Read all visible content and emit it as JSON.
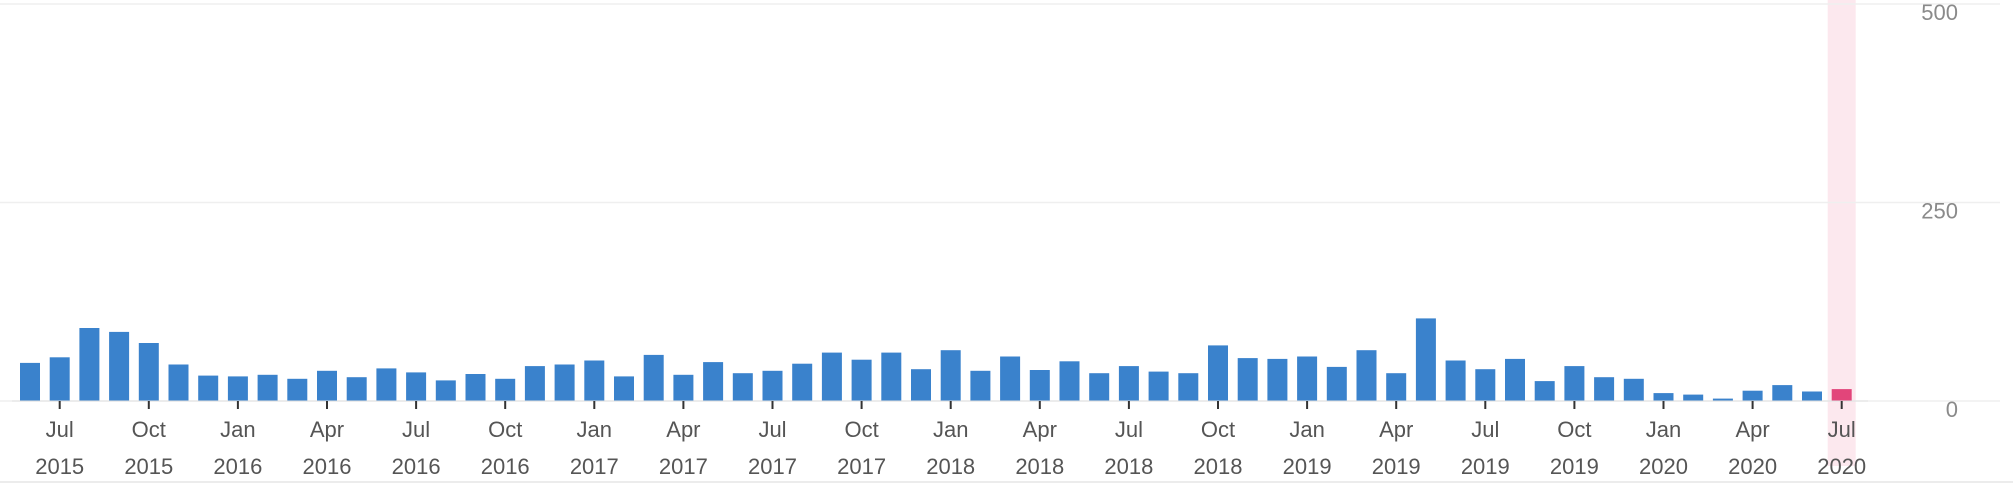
{
  "chart_data": {
    "type": "bar",
    "title": "",
    "xlabel": "",
    "ylabel": "",
    "ylim": [
      0,
      500
    ],
    "y_ticks": [
      "500",
      "250",
      "0"
    ],
    "y_tick_values": [
      500,
      250,
      0
    ],
    "grid": true,
    "colors": {
      "bar": "#3a82cc",
      "highlight_bar": "#e2457a",
      "highlight_band": "#fce8ee",
      "grid": "#efefef"
    },
    "categories": [
      "Jun 2015",
      "Jul 2015",
      "Aug 2015",
      "Sep 2015",
      "Oct 2015",
      "Nov 2015",
      "Dec 2015",
      "Jan 2016",
      "Feb 2016",
      "Mar 2016",
      "Apr 2016",
      "May 2016",
      "Jun 2016",
      "Jul 2016",
      "Aug 2016",
      "Sep 2016",
      "Oct 2016",
      "Nov 2016",
      "Dec 2016",
      "Jan 2017",
      "Feb 2017",
      "Mar 2017",
      "Apr 2017",
      "May 2017",
      "Jun 2017",
      "Jul 2017",
      "Aug 2017",
      "Sep 2017",
      "Oct 2017",
      "Nov 2017",
      "Dec 2017",
      "Jan 2018",
      "Feb 2018",
      "Mar 2018",
      "Apr 2018",
      "May 2018",
      "Jun 2018",
      "Jul 2018",
      "Aug 2018",
      "Sep 2018",
      "Oct 2018",
      "Nov 2018",
      "Dec 2018",
      "Jan 2019",
      "Feb 2019",
      "Mar 2019",
      "Apr 2019",
      "May 2019",
      "Jun 2019",
      "Jul 2019",
      "Aug 2019",
      "Sep 2019",
      "Oct 2019",
      "Nov 2019",
      "Dec 2019",
      "Jan 2020",
      "Feb 2020",
      "Mar 2020",
      "Apr 2020",
      "May 2020",
      "Jun 2020",
      "Jul 2020"
    ],
    "values": [
      48,
      55,
      92,
      87,
      73,
      46,
      32,
      31,
      33,
      28,
      38,
      30,
      41,
      36,
      26,
      34,
      28,
      44,
      46,
      51,
      31,
      58,
      33,
      49,
      35,
      38,
      47,
      61,
      52,
      61,
      40,
      64,
      38,
      56,
      39,
      50,
      35,
      44,
      37,
      35,
      70,
      54,
      53,
      56,
      43,
      64,
      35,
      104,
      51,
      40,
      53,
      25,
      44,
      30,
      28,
      10,
      8,
      3,
      13,
      20,
      12,
      15
    ],
    "highlight_index": 61,
    "x_tick_labels": [
      {
        "month": "Jul",
        "year": "2015",
        "index": 1
      },
      {
        "month": "Oct",
        "year": "2015",
        "index": 4
      },
      {
        "month": "Jan",
        "year": "2016",
        "index": 7
      },
      {
        "month": "Apr",
        "year": "2016",
        "index": 10
      },
      {
        "month": "Jul",
        "year": "2016",
        "index": 13
      },
      {
        "month": "Oct",
        "year": "2016",
        "index": 16
      },
      {
        "month": "Jan",
        "year": "2017",
        "index": 19
      },
      {
        "month": "Apr",
        "year": "2017",
        "index": 22
      },
      {
        "month": "Jul",
        "year": "2017",
        "index": 25
      },
      {
        "month": "Oct",
        "year": "2017",
        "index": 28
      },
      {
        "month": "Jan",
        "year": "2018",
        "index": 31
      },
      {
        "month": "Apr",
        "year": "2018",
        "index": 34
      },
      {
        "month": "Jul",
        "year": "2018",
        "index": 37
      },
      {
        "month": "Oct",
        "year": "2018",
        "index": 40
      },
      {
        "month": "Jan",
        "year": "2019",
        "index": 43
      },
      {
        "month": "Apr",
        "year": "2019",
        "index": 46
      },
      {
        "month": "Jul",
        "year": "2019",
        "index": 49
      },
      {
        "month": "Oct",
        "year": "2019",
        "index": 52
      },
      {
        "month": "Jan",
        "year": "2020",
        "index": 55
      },
      {
        "month": "Apr",
        "year": "2020",
        "index": 58
      },
      {
        "month": "Jul",
        "year": "2020",
        "index": 61
      }
    ]
  }
}
